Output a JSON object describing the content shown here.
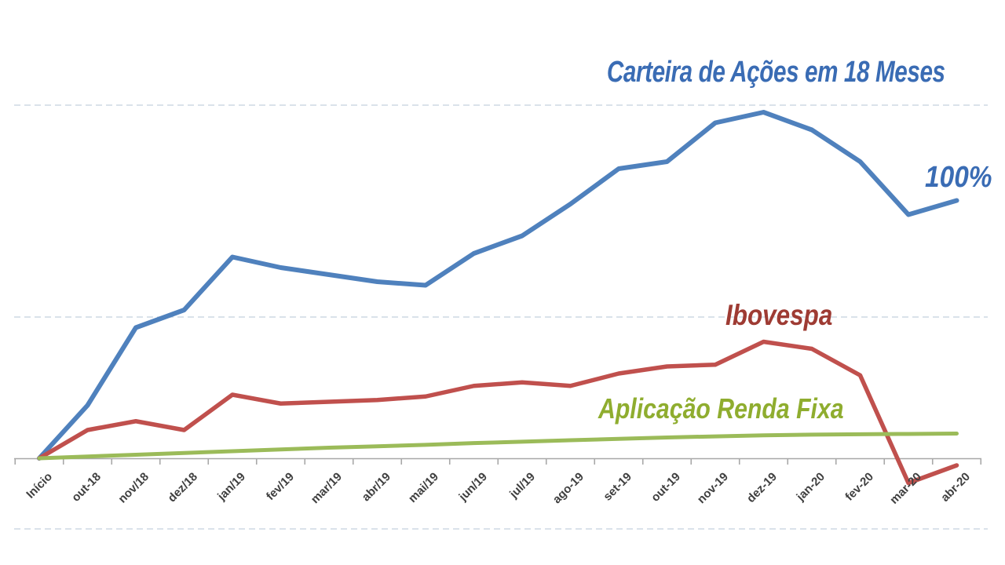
{
  "chart_data": {
    "type": "line",
    "title": "Carteira de Ações em 18 Meses",
    "xlabel": "",
    "ylabel": "",
    "unit": "percent return",
    "legend": "none — series identified by colored text annotations",
    "grid": "horizontal dashed gridlines",
    "x_axis": {
      "categories": [
        "Início",
        "out-18",
        "nov/18",
        "dez/18",
        "jan/19",
        "fev/19",
        "mar/19",
        "abr/19",
        "mai/19",
        "jun/19",
        "jul/19",
        "ago-19",
        "set-19",
        "out-19",
        "nov-19",
        "dez-19",
        "jan-20",
        "fev-20",
        "mar-20",
        "abr-20"
      ],
      "tick_marks": "boundary ticks between categories",
      "label_rotation_deg": 45
    },
    "y_axis": {
      "visible_labels": false,
      "gridline_values": [
        100,
        40,
        -20
      ],
      "implied_range": [
        -20,
        130
      ]
    },
    "series": [
      {
        "name": "Carteira de Ações",
        "annotation": "100%",
        "line_color": "#4F81BD",
        "label_color": "#3A6CB4",
        "stroke_width": 6,
        "values": [
          0,
          15,
          37,
          42,
          57,
          54,
          52,
          50,
          49,
          58,
          63,
          72,
          82,
          84,
          95,
          98,
          93,
          84,
          69,
          73
        ]
      },
      {
        "name": "Ibovespa",
        "annotation": "Ibovespa",
        "line_color": "#C0504D",
        "label_color": "#9E3B33",
        "stroke_width": 5.5,
        "values": [
          0,
          8,
          10.5,
          8,
          18,
          15.5,
          16,
          16.5,
          17.5,
          20.5,
          21.5,
          20.5,
          24,
          26,
          26.5,
          33,
          31,
          23.5,
          -7,
          -2
        ]
      },
      {
        "name": "Aplicação Renda Fixa",
        "annotation": "Aplicação Renda Fixa",
        "line_color": "#9BBB59",
        "label_color": "#8FAD2F",
        "stroke_width": 5,
        "values": [
          0,
          0.5,
          1,
          1.5,
          2,
          2.5,
          3,
          3.4,
          3.8,
          4.3,
          4.7,
          5.1,
          5.5,
          5.9,
          6.2,
          6.5,
          6.7,
          6.8,
          6.9,
          7
        ]
      }
    ],
    "style": {
      "background_color": "#ffffff",
      "title_color": "#3A6CB4",
      "gridline_color": "#CDD8E4",
      "axis_color": "#A8A8A8",
      "tick_label_color": "#3f3f3f"
    }
  }
}
